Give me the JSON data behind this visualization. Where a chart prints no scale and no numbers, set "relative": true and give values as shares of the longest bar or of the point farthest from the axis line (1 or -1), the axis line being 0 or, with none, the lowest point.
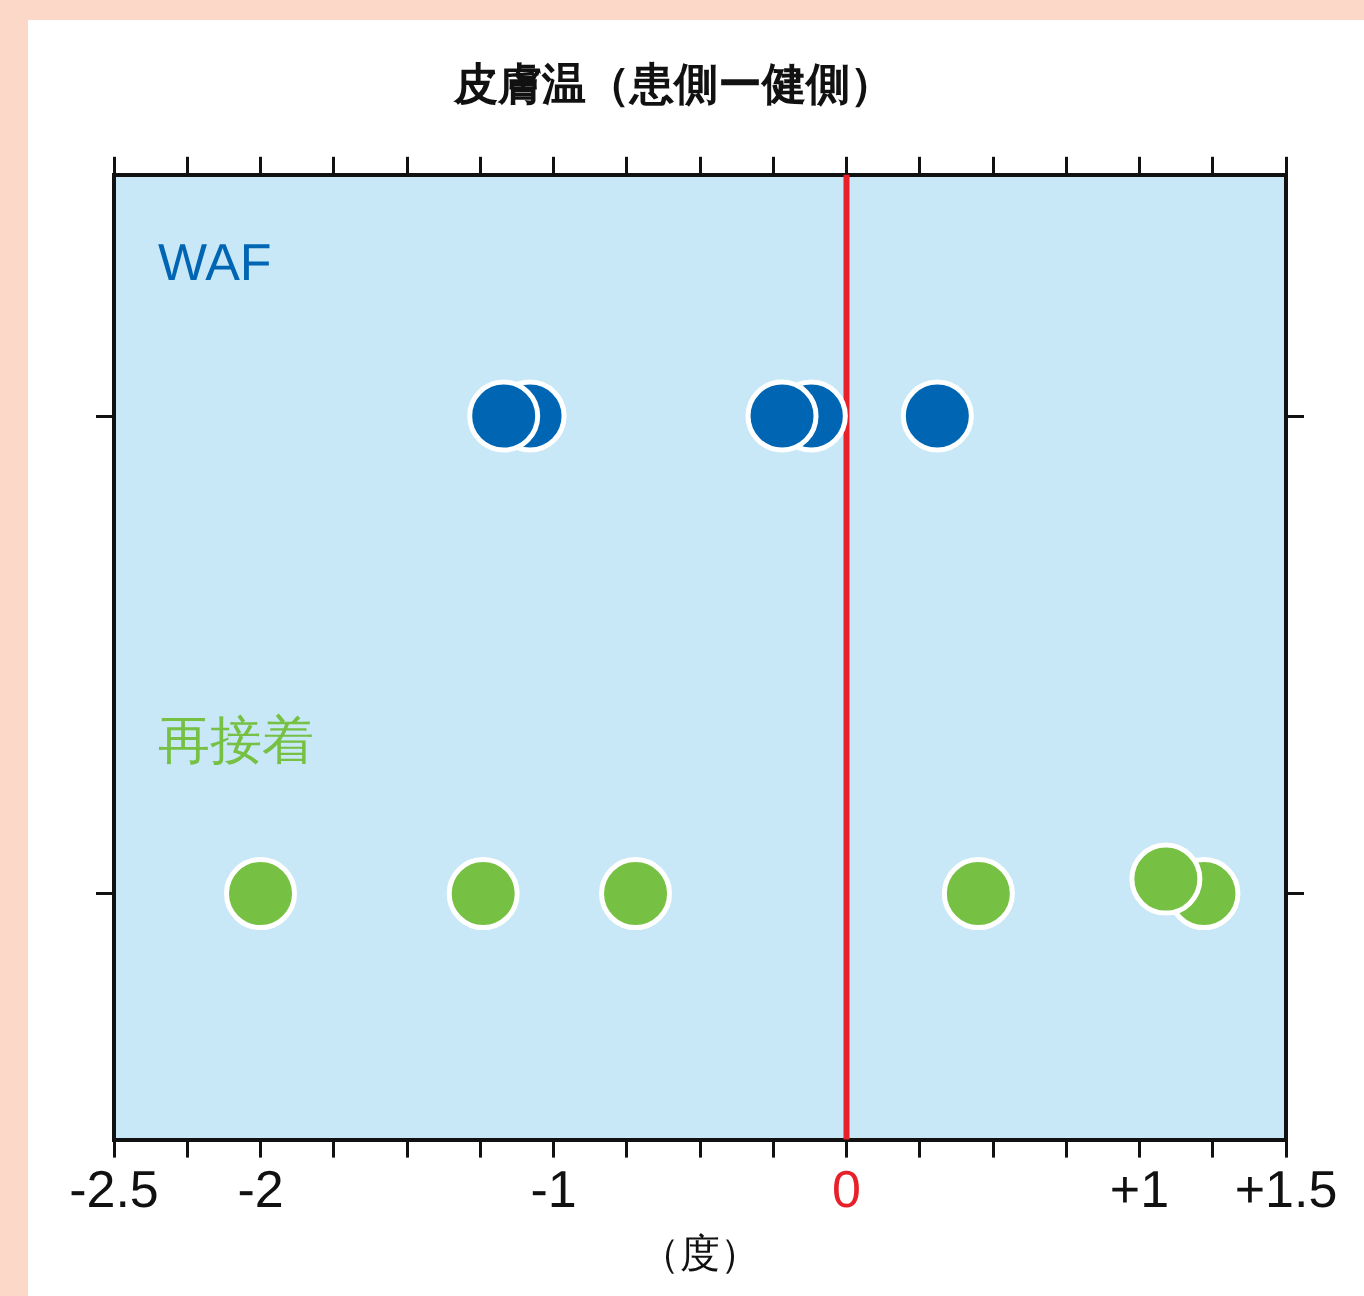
{
  "chart_data": {
    "type": "scatter",
    "title": "皮膚温（患側ー健側）",
    "xlabel": "（度）",
    "xlim": [
      -2.5,
      1.5
    ],
    "xticks": [
      {
        "value": -2.5,
        "label": "-2.5"
      },
      {
        "value": -2.25,
        "label": null
      },
      {
        "value": -2,
        "label": "-2"
      },
      {
        "value": -1.75,
        "label": null
      },
      {
        "value": -1.5,
        "label": null
      },
      {
        "value": -1.25,
        "label": null
      },
      {
        "value": -1,
        "label": "-1"
      },
      {
        "value": -0.75,
        "label": null
      },
      {
        "value": -0.5,
        "label": null
      },
      {
        "value": -0.25,
        "label": null
      },
      {
        "value": 0,
        "label": "0"
      },
      {
        "value": 0.25,
        "label": null
      },
      {
        "value": 0.5,
        "label": null
      },
      {
        "value": 0.75,
        "label": null
      },
      {
        "value": 1,
        "label": "+1"
      },
      {
        "value": 1.25,
        "label": null
      },
      {
        "value": 1.5,
        "label": "+1.5"
      }
    ],
    "relative": true,
    "tick_labels": "x",
    "series": [
      {
        "name": "WAF",
        "color": "#0066b3",
        "x": [
          -1.08,
          -1.17,
          -0.12,
          -0.22,
          0.31
        ],
        "values": [
          1,
          1,
          1,
          1,
          1
        ]
      },
      {
        "name": "再接着",
        "color": "#76c043",
        "x": [
          -2.0,
          -1.24,
          -0.72,
          0.45,
          1.22,
          1.09
        ],
        "values": [
          0.34,
          0.34,
          0.34,
          0.34,
          0.34,
          0.36
        ]
      }
    ],
    "ref_lines": [
      {
        "axis": "x",
        "value": 0,
        "color": "#e8202a"
      }
    ],
    "marker": "circle",
    "grid": false,
    "legend": false
  }
}
